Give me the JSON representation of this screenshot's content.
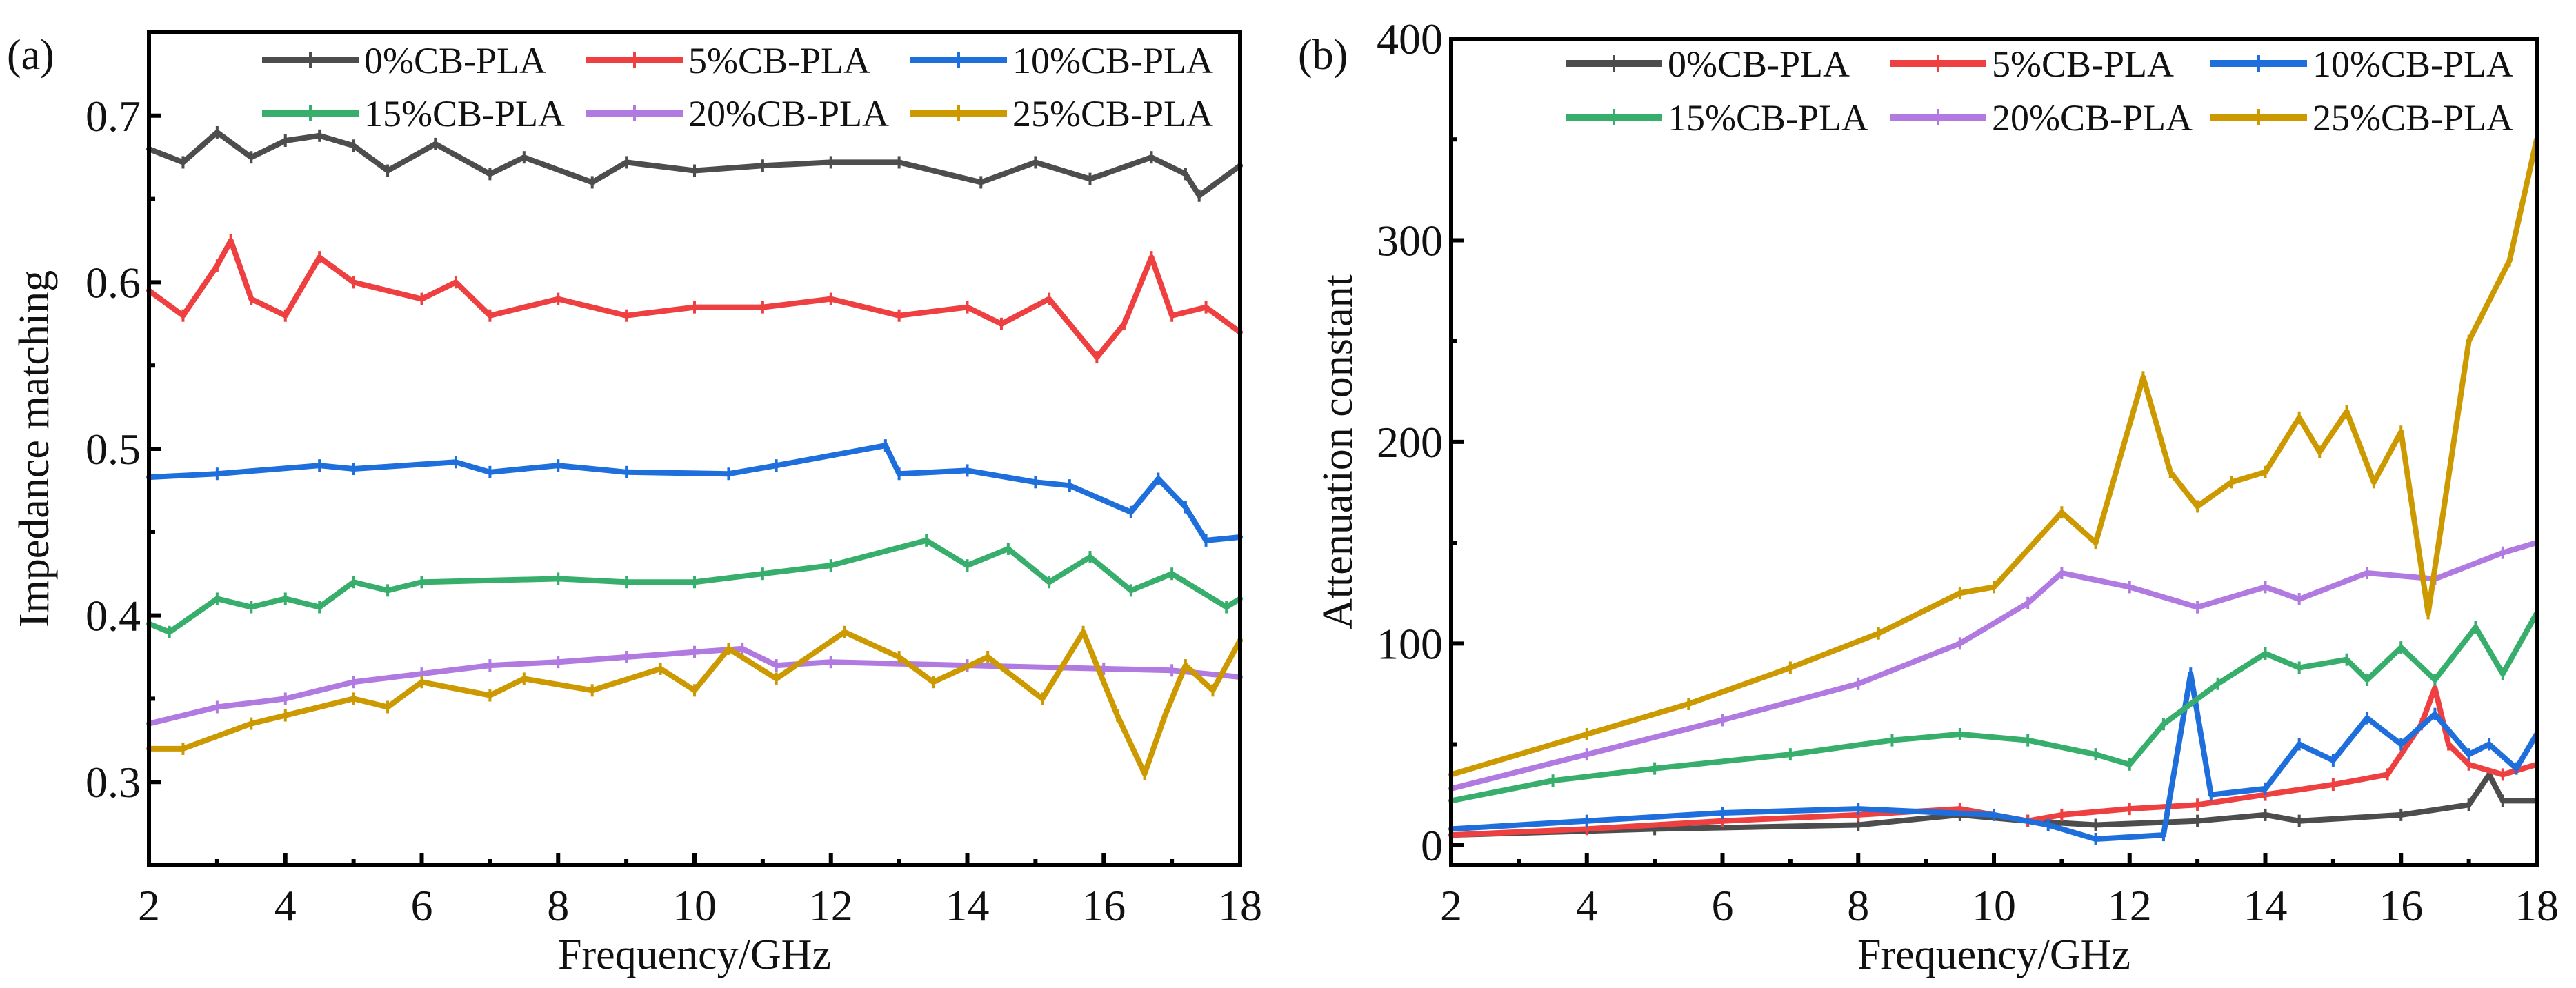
{
  "colors": {
    "0%CB-PLA": "#4d4d4d",
    "5%CB-PLA": "#ee4040",
    "10%CB-PLA": "#1e6fdc",
    "15%CB-PLA": "#38ae6c",
    "20%CB-PLA": "#b07ae0",
    "25%CB-PLA": "#cc9900"
  },
  "chart_data": [
    {
      "type": "line",
      "panel_label": "(a)",
      "xlabel": "Frequency/GHz",
      "ylabel": "Impedance matching",
      "xlim": [
        2,
        18
      ],
      "ylim": [
        0.25,
        0.75
      ],
      "xticks": [
        "2",
        "4",
        "6",
        "8",
        "10",
        "12",
        "14",
        "16",
        "18"
      ],
      "yticks": [
        "0.3",
        "0.4",
        "0.5",
        "0.6",
        "0.7"
      ],
      "legend_placement": "top-right",
      "series": [
        {
          "name": "0%CB-PLA",
          "x": [
            2,
            2.5,
            3,
            3.5,
            4,
            4.5,
            5,
            5.5,
            6.2,
            7,
            7.5,
            8.5,
            9,
            10,
            11,
            12,
            13,
            14.2,
            15,
            15.8,
            16.7,
            17.2,
            17.4,
            18
          ],
          "y": [
            0.68,
            0.672,
            0.69,
            0.675,
            0.685,
            0.688,
            0.682,
            0.667,
            0.683,
            0.665,
            0.675,
            0.66,
            0.672,
            0.667,
            0.67,
            0.672,
            0.672,
            0.66,
            0.672,
            0.662,
            0.675,
            0.665,
            0.652,
            0.67
          ]
        },
        {
          "name": "5%CB-PLA",
          "x": [
            2,
            2.5,
            3,
            3.2,
            3.5,
            4,
            4.5,
            5,
            6,
            6.5,
            7,
            8,
            9,
            10,
            11,
            12,
            13,
            14,
            14.5,
            15.2,
            15.9,
            16.3,
            16.7,
            17,
            17.5,
            18
          ],
          "y": [
            0.595,
            0.58,
            0.61,
            0.625,
            0.59,
            0.58,
            0.615,
            0.6,
            0.59,
            0.6,
            0.58,
            0.59,
            0.58,
            0.585,
            0.585,
            0.59,
            0.58,
            0.585,
            0.575,
            0.59,
            0.555,
            0.575,
            0.615,
            0.58,
            0.585,
            0.57
          ]
        },
        {
          "name": "10%CB-PLA",
          "x": [
            2,
            3,
            4.5,
            5,
            6.5,
            7,
            8,
            9,
            10.5,
            11.2,
            12.8,
            13,
            14,
            15,
            15.5,
            16.4,
            16.8,
            17.2,
            17.5,
            18
          ],
          "y": [
            0.483,
            0.485,
            0.49,
            0.488,
            0.492,
            0.486,
            0.49,
            0.486,
            0.485,
            0.49,
            0.502,
            0.485,
            0.487,
            0.48,
            0.478,
            0.462,
            0.482,
            0.465,
            0.445,
            0.447
          ]
        },
        {
          "name": "15%CB-PLA",
          "x": [
            2,
            2.3,
            3,
            3.5,
            4,
            4.5,
            5,
            5.5,
            6,
            8,
            9,
            10,
            11,
            12,
            13.4,
            14,
            14.6,
            15.2,
            15.8,
            16.4,
            17,
            17.8,
            18
          ],
          "y": [
            0.395,
            0.39,
            0.41,
            0.405,
            0.41,
            0.405,
            0.42,
            0.415,
            0.42,
            0.422,
            0.42,
            0.42,
            0.425,
            0.43,
            0.445,
            0.43,
            0.44,
            0.42,
            0.435,
            0.415,
            0.425,
            0.405,
            0.41
          ]
        },
        {
          "name": "20%CB-PLA",
          "x": [
            2,
            3,
            4,
            5,
            6,
            7,
            8,
            9,
            10,
            10.7,
            11.2,
            12,
            14,
            16,
            17,
            18
          ],
          "y": [
            0.335,
            0.345,
            0.35,
            0.36,
            0.365,
            0.37,
            0.372,
            0.375,
            0.378,
            0.38,
            0.37,
            0.372,
            0.37,
            0.368,
            0.367,
            0.363
          ]
        },
        {
          "name": "25%CB-PLA",
          "x": [
            2,
            2.5,
            3.5,
            4,
            5,
            5.5,
            6,
            7,
            7.5,
            8.5,
            9.5,
            10,
            10.5,
            11.2,
            12.2,
            13,
            13.5,
            14.3,
            15.1,
            15.7,
            16.2,
            16.6,
            16.9,
            17.2,
            17.6,
            18
          ],
          "y": [
            0.32,
            0.32,
            0.335,
            0.34,
            0.35,
            0.345,
            0.36,
            0.352,
            0.362,
            0.355,
            0.368,
            0.355,
            0.38,
            0.362,
            0.39,
            0.375,
            0.36,
            0.375,
            0.35,
            0.39,
            0.34,
            0.305,
            0.34,
            0.37,
            0.355,
            0.385
          ]
        }
      ]
    },
    {
      "type": "line",
      "panel_label": "(b)",
      "xlabel": "Frequency/GHz",
      "ylabel": "Attenuation constant",
      "xlim": [
        2,
        18
      ],
      "ylim": [
        -10,
        400
      ],
      "xticks": [
        "2",
        "4",
        "6",
        "8",
        "10",
        "12",
        "14",
        "16",
        "18"
      ],
      "yticks": [
        "0",
        "100",
        "200",
        "300",
        "400"
      ],
      "legend_placement": "top-right",
      "series": [
        {
          "name": "0%CB-PLA",
          "x": [
            2,
            5,
            8,
            9.5,
            10.5,
            11.5,
            13,
            14,
            14.5,
            16,
            17,
            17.3,
            17.5,
            18
          ],
          "y": [
            5,
            8,
            10,
            15,
            12,
            10,
            12,
            15,
            12,
            15,
            20,
            35,
            22,
            22
          ]
        },
        {
          "name": "5%CB-PLA",
          "x": [
            2,
            4,
            6,
            8,
            9.5,
            10.5,
            11,
            12,
            13,
            14,
            15,
            15.8,
            16.3,
            16.5,
            16.7,
            17,
            17.5,
            18
          ],
          "y": [
            5,
            8,
            12,
            15,
            18,
            12,
            15,
            18,
            20,
            25,
            30,
            35,
            60,
            78,
            50,
            40,
            35,
            40
          ]
        },
        {
          "name": "10%CB-PLA",
          "x": [
            2,
            4,
            6,
            8,
            10,
            10.8,
            11.5,
            12.5,
            12.9,
            13.2,
            14,
            14.5,
            15,
            15.5,
            16,
            16.5,
            17,
            17.3,
            17.7,
            18
          ],
          "y": [
            8,
            12,
            16,
            18,
            15,
            10,
            3,
            5,
            85,
            25,
            28,
            50,
            42,
            63,
            50,
            65,
            45,
            50,
            38,
            55
          ]
        },
        {
          "name": "15%CB-PLA",
          "x": [
            2,
            3.5,
            5,
            7,
            8.5,
            9.5,
            10.5,
            11.5,
            12,
            12.5,
            13.3,
            14,
            14.5,
            15.2,
            15.5,
            16,
            16.5,
            17.1,
            17.5,
            18
          ],
          "y": [
            22,
            32,
            38,
            45,
            52,
            55,
            52,
            45,
            40,
            60,
            80,
            95,
            88,
            92,
            82,
            98,
            82,
            108,
            85,
            115
          ]
        },
        {
          "name": "20%CB-PLA",
          "x": [
            2,
            4,
            6,
            8,
            9.5,
            10.5,
            11,
            12,
            13,
            14,
            14.5,
            15.5,
            16.5,
            17.5,
            18
          ],
          "y": [
            28,
            45,
            62,
            80,
            100,
            120,
            135,
            128,
            118,
            128,
            122,
            135,
            132,
            145,
            150
          ]
        },
        {
          "name": "25%CB-PLA",
          "x": [
            2,
            4,
            5.5,
            7,
            8.3,
            9.5,
            10,
            11,
            11.5,
            12.2,
            12.6,
            13,
            13.5,
            14,
            14.5,
            14.8,
            15.2,
            15.6,
            16,
            16.4,
            16.6,
            17,
            17.6,
            18
          ],
          "y": [
            35,
            55,
            70,
            88,
            105,
            125,
            128,
            165,
            150,
            232,
            185,
            168,
            180,
            185,
            212,
            195,
            215,
            180,
            205,
            115,
            160,
            250,
            290,
            350
          ]
        }
      ]
    }
  ]
}
